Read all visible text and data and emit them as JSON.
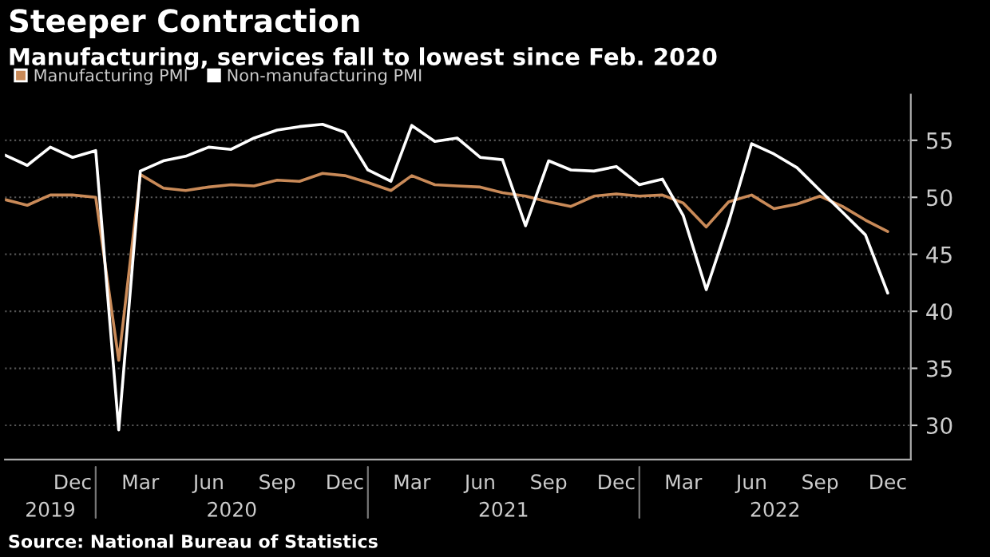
{
  "chart_data": {
    "type": "line",
    "title": "Steeper Contraction",
    "subtitle": "Manufacturing, services fall to lowest since Feb. 2020",
    "x": [
      "2019-09",
      "2019-10",
      "2019-11",
      "2019-12",
      "2020-01",
      "2020-02",
      "2020-03",
      "2020-04",
      "2020-05",
      "2020-06",
      "2020-07",
      "2020-08",
      "2020-09",
      "2020-10",
      "2020-11",
      "2020-12",
      "2021-01",
      "2021-02",
      "2021-03",
      "2021-04",
      "2021-05",
      "2021-06",
      "2021-07",
      "2021-08",
      "2021-09",
      "2021-10",
      "2021-11",
      "2021-12",
      "2022-01",
      "2022-02",
      "2022-03",
      "2022-04",
      "2022-05",
      "2022-06",
      "2022-07",
      "2022-08",
      "2022-09",
      "2022-10",
      "2022-11",
      "2022-12"
    ],
    "series": [
      {
        "name": "Manufacturing PMI",
        "color": "#c98a58",
        "values": [
          49.8,
          49.3,
          50.2,
          50.2,
          50.0,
          35.7,
          52.0,
          50.8,
          50.6,
          50.9,
          51.1,
          51.0,
          51.5,
          51.4,
          52.1,
          51.9,
          51.3,
          50.6,
          51.9,
          51.1,
          51.0,
          50.9,
          50.4,
          50.1,
          49.6,
          49.2,
          50.1,
          50.3,
          50.1,
          50.2,
          49.5,
          47.4,
          49.6,
          50.2,
          49.0,
          49.4,
          50.1,
          49.2,
          48.0,
          47.0
        ]
      },
      {
        "name": "Non-manufacturing PMI",
        "color": "#ffffff",
        "values": [
          53.7,
          52.8,
          54.4,
          53.5,
          54.1,
          29.6,
          52.3,
          53.2,
          53.6,
          54.4,
          54.2,
          55.2,
          55.9,
          56.2,
          56.4,
          55.7,
          52.4,
          51.4,
          56.3,
          54.9,
          55.2,
          53.5,
          53.3,
          47.5,
          53.2,
          52.4,
          52.3,
          52.7,
          51.1,
          51.6,
          48.4,
          41.9,
          47.8,
          54.7,
          53.8,
          52.6,
          50.6,
          48.7,
          46.7,
          41.6
        ]
      }
    ],
    "xlim": [
      "2019-09",
      "2023-01"
    ],
    "xticks": [
      {
        "value": "2019-12",
        "label": "Dec"
      },
      {
        "value": "2020-03",
        "label": "Mar"
      },
      {
        "value": "2020-06",
        "label": "Jun"
      },
      {
        "value": "2020-09",
        "label": "Sep"
      },
      {
        "value": "2020-12",
        "label": "Dec"
      },
      {
        "value": "2021-03",
        "label": "Mar"
      },
      {
        "value": "2021-06",
        "label": "Jun"
      },
      {
        "value": "2021-09",
        "label": "Sep"
      },
      {
        "value": "2021-12",
        "label": "Dec"
      },
      {
        "value": "2022-03",
        "label": "Mar"
      },
      {
        "value": "2022-06",
        "label": "Jun"
      },
      {
        "value": "2022-09",
        "label": "Sep"
      },
      {
        "value": "2022-12",
        "label": "Dec"
      }
    ],
    "ylim": [
      27,
      59
    ],
    "yticks": [
      30,
      35,
      40,
      45,
      50,
      55
    ],
    "grid": "y",
    "legend": "top left",
    "marker": "none",
    "line_style": "solid",
    "annotations": [
      "2019",
      "2020",
      "2021",
      "2022",
      "Source: National Bureau of Statistics"
    ]
  }
}
